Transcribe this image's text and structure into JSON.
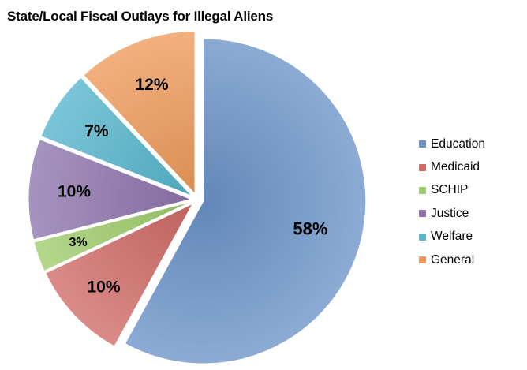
{
  "title": "State/Local Fiscal Outlays for Illegal Aliens",
  "chart_data": {
    "type": "pie",
    "title": "State/Local Fiscal Outlays for Illegal Aliens",
    "legend_position": "right",
    "exploded": true,
    "slices": [
      {
        "name": "Education",
        "value": 58,
        "label": "58%",
        "color": "#6b93c8"
      },
      {
        "name": "Medicaid",
        "value": 10,
        "label": "10%",
        "color": "#d06a66"
      },
      {
        "name": "SCHIP",
        "value": 3,
        "label": "3%",
        "color": "#9fcc6b"
      },
      {
        "name": "Justice",
        "value": 10,
        "label": "10%",
        "color": "#8e74ad"
      },
      {
        "name": "Welfare",
        "value": 7,
        "label": "7%",
        "color": "#55b5cc"
      },
      {
        "name": "General",
        "value": 12,
        "label": "12%",
        "color": "#ed9a59"
      }
    ]
  }
}
